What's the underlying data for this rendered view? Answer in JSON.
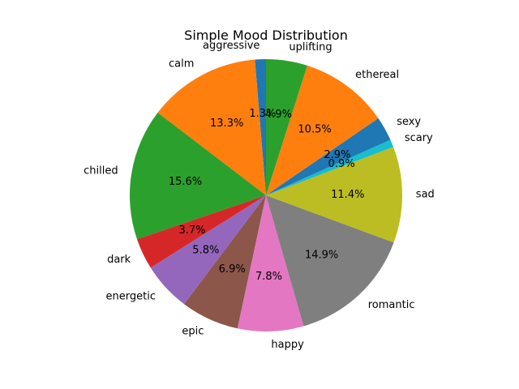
{
  "chart_data": {
    "type": "pie",
    "title": "Simple Mood Distribution",
    "start_angle_deg": 90,
    "direction": "counterclockwise",
    "slices": [
      {
        "label": "aggressive",
        "value": 1.3,
        "pct_label": "1.3%",
        "color": "#1f77b4"
      },
      {
        "label": "calm",
        "value": 13.3,
        "pct_label": "13.3%",
        "color": "#ff7f0e"
      },
      {
        "label": "chilled",
        "value": 15.6,
        "pct_label": "15.6%",
        "color": "#2ca02c"
      },
      {
        "label": "dark",
        "value": 3.7,
        "pct_label": "3.7%",
        "color": "#d62728"
      },
      {
        "label": "energetic",
        "value": 5.8,
        "pct_label": "5.8%",
        "color": "#9467bd"
      },
      {
        "label": "epic",
        "value": 6.9,
        "pct_label": "6.9%",
        "color": "#8c564b"
      },
      {
        "label": "happy",
        "value": 7.8,
        "pct_label": "7.8%",
        "color": "#e377c2"
      },
      {
        "label": "romantic",
        "value": 14.9,
        "pct_label": "14.9%",
        "color": "#7f7f7f"
      },
      {
        "label": "sad",
        "value": 11.4,
        "pct_label": "11.4%",
        "color": "#bcbd22"
      },
      {
        "label": "scary",
        "value": 0.9,
        "pct_label": "0.9%",
        "color": "#17becf"
      },
      {
        "label": "sexy",
        "value": 2.9,
        "pct_label": "2.9%",
        "color": "#1f77b4"
      },
      {
        "label": "ethereal",
        "value": 10.5,
        "pct_label": "10.5%",
        "color": "#ff7f0e"
      },
      {
        "label": "uplifting",
        "value": 4.9,
        "pct_label": "4.9%",
        "color": "#2ca02c"
      }
    ]
  }
}
